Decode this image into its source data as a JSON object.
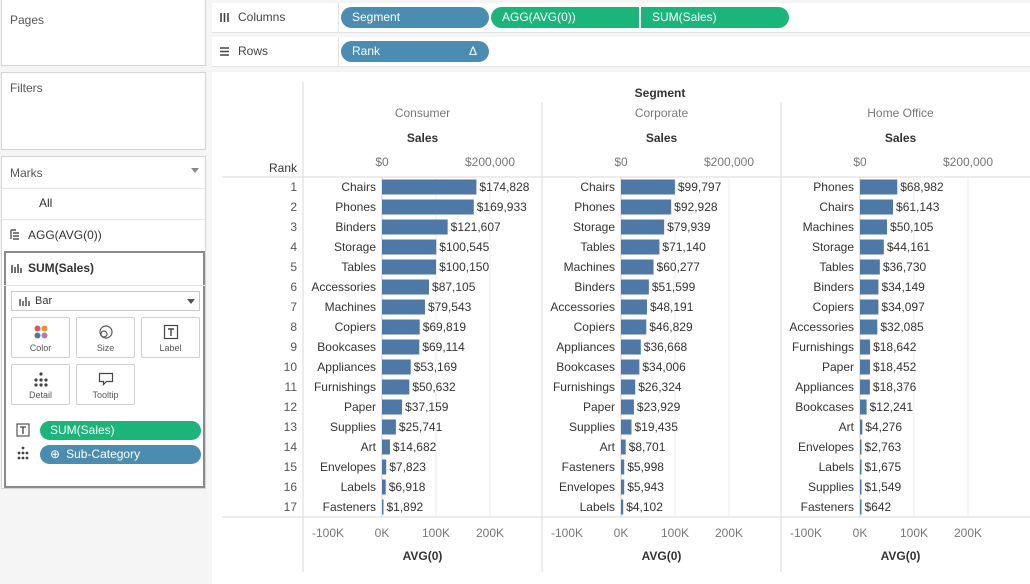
{
  "side": {
    "pages_title": "Pages",
    "filters_title": "Filters",
    "marks_title": "Marks",
    "marks_all": "All",
    "marks_agg": "AGG(AVG(0))",
    "marks_sum": "SUM(Sales)",
    "mark_type": "Bar",
    "buttons": [
      "Color",
      "Size",
      "Label",
      "Detail",
      "Tooltip"
    ],
    "pill_label": "SUM(Sales)",
    "pill_detail": "Sub-Category",
    "pill_detail_prefix": "⊕"
  },
  "shelves": {
    "columns_label": "Columns",
    "rows_label": "Rows",
    "columns_pills": [
      "Segment",
      "AGG(AVG(0))",
      "SUM(Sales)"
    ],
    "rows_pill": "Rank",
    "rows_pill_delta": "Δ"
  },
  "colors": {
    "bar": "#4e79a7",
    "pill_blue": "#4b8db0",
    "pill_green": "#1bb47a"
  },
  "chart_data": {
    "type": "bar",
    "header": "Segment",
    "row_header": "Rank",
    "measure_label": "Sales",
    "xlabel_bottom": "AVG(0)",
    "top_ticks": [
      "$0",
      "$200,000"
    ],
    "bottom_ticks": [
      "-100K",
      "0K",
      "100K",
      "200K"
    ],
    "xlim": [
      -130000,
      260000
    ],
    "ranks": [
      1,
      2,
      3,
      4,
      5,
      6,
      7,
      8,
      9,
      10,
      11,
      12,
      13,
      14,
      15,
      16,
      17
    ],
    "panels": [
      {
        "segment": "Consumer",
        "rows": [
          {
            "sub": "Chairs",
            "value": 174828,
            "label": "$174,828"
          },
          {
            "sub": "Phones",
            "value": 169933,
            "label": "$169,933"
          },
          {
            "sub": "Binders",
            "value": 121607,
            "label": "$121,607"
          },
          {
            "sub": "Storage",
            "value": 100545,
            "label": "$100,545"
          },
          {
            "sub": "Tables",
            "value": 100150,
            "label": "$100,150"
          },
          {
            "sub": "Accessories",
            "value": 87105,
            "label": "$87,105"
          },
          {
            "sub": "Machines",
            "value": 79543,
            "label": "$79,543"
          },
          {
            "sub": "Copiers",
            "value": 69819,
            "label": "$69,819"
          },
          {
            "sub": "Bookcases",
            "value": 69114,
            "label": "$69,114"
          },
          {
            "sub": "Appliances",
            "value": 53169,
            "label": "$53,169"
          },
          {
            "sub": "Furnishings",
            "value": 50632,
            "label": "$50,632"
          },
          {
            "sub": "Paper",
            "value": 37159,
            "label": "$37,159"
          },
          {
            "sub": "Supplies",
            "value": 25741,
            "label": "$25,741"
          },
          {
            "sub": "Art",
            "value": 14682,
            "label": "$14,682"
          },
          {
            "sub": "Envelopes",
            "value": 7823,
            "label": "$7,823"
          },
          {
            "sub": "Labels",
            "value": 6918,
            "label": "$6,918"
          },
          {
            "sub": "Fasteners",
            "value": 1892,
            "label": "$1,892"
          }
        ]
      },
      {
        "segment": "Corporate",
        "rows": [
          {
            "sub": "Chairs",
            "value": 99797,
            "label": "$99,797"
          },
          {
            "sub": "Phones",
            "value": 92928,
            "label": "$92,928"
          },
          {
            "sub": "Storage",
            "value": 79939,
            "label": "$79,939"
          },
          {
            "sub": "Tables",
            "value": 71140,
            "label": "$71,140"
          },
          {
            "sub": "Machines",
            "value": 60277,
            "label": "$60,277"
          },
          {
            "sub": "Binders",
            "value": 51599,
            "label": "$51,599"
          },
          {
            "sub": "Accessories",
            "value": 48191,
            "label": "$48,191"
          },
          {
            "sub": "Copiers",
            "value": 46829,
            "label": "$46,829"
          },
          {
            "sub": "Appliances",
            "value": 36668,
            "label": "$36,668"
          },
          {
            "sub": "Bookcases",
            "value": 34006,
            "label": "$34,006"
          },
          {
            "sub": "Furnishings",
            "value": 26324,
            "label": "$26,324"
          },
          {
            "sub": "Paper",
            "value": 23929,
            "label": "$23,929"
          },
          {
            "sub": "Supplies",
            "value": 19435,
            "label": "$19,435"
          },
          {
            "sub": "Art",
            "value": 8701,
            "label": "$8,701"
          },
          {
            "sub": "Fasteners",
            "value": 5998,
            "label": "$5,998"
          },
          {
            "sub": "Envelopes",
            "value": 5943,
            "label": "$5,943"
          },
          {
            "sub": "Labels",
            "value": 4102,
            "label": "$4,102"
          }
        ]
      },
      {
        "segment": "Home Office",
        "rows": [
          {
            "sub": "Phones",
            "value": 68982,
            "label": "$68,982"
          },
          {
            "sub": "Chairs",
            "value": 61143,
            "label": "$61,143"
          },
          {
            "sub": "Machines",
            "value": 50105,
            "label": "$50,105"
          },
          {
            "sub": "Storage",
            "value": 44161,
            "label": "$44,161"
          },
          {
            "sub": "Tables",
            "value": 36730,
            "label": "$36,730"
          },
          {
            "sub": "Binders",
            "value": 34149,
            "label": "$34,149"
          },
          {
            "sub": "Copiers",
            "value": 34097,
            "label": "$34,097"
          },
          {
            "sub": "Accessories",
            "value": 32085,
            "label": "$32,085"
          },
          {
            "sub": "Furnishings",
            "value": 18642,
            "label": "$18,642"
          },
          {
            "sub": "Paper",
            "value": 18452,
            "label": "$18,452"
          },
          {
            "sub": "Appliances",
            "value": 18376,
            "label": "$18,376"
          },
          {
            "sub": "Bookcases",
            "value": 12241,
            "label": "$12,241"
          },
          {
            "sub": "Art",
            "value": 4276,
            "label": "$4,276"
          },
          {
            "sub": "Envelopes",
            "value": 2763,
            "label": "$2,763"
          },
          {
            "sub": "Labels",
            "value": 1675,
            "label": "$1,675"
          },
          {
            "sub": "Supplies",
            "value": 1549,
            "label": "$1,549"
          },
          {
            "sub": "Fasteners",
            "value": 642,
            "label": "$642"
          }
        ]
      }
    ]
  }
}
